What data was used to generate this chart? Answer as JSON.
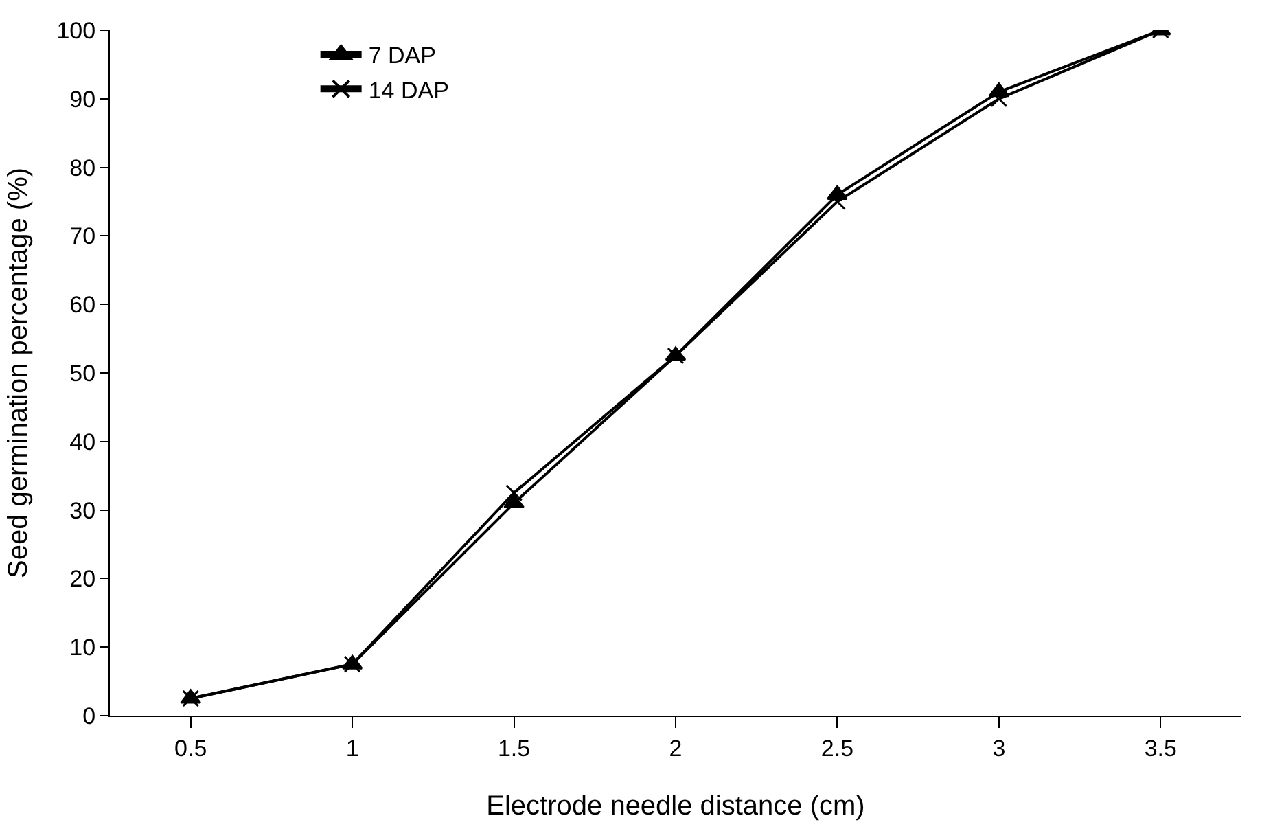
{
  "chart_data": {
    "type": "line",
    "xlabel": "Electrode needle distance (cm)",
    "ylabel": "Seed germination percentage (%)",
    "categories": [
      "0.5",
      "1",
      "1.5",
      "2",
      "2.5",
      "3",
      "3.5"
    ],
    "series": [
      {
        "name": "7 DAP",
        "color": "#000000",
        "marker": "triangle",
        "values": [
          2.5,
          7.5,
          31,
          52.5,
          76,
          91,
          100
        ]
      },
      {
        "name": "14 DAP",
        "color": "#000000",
        "marker": "cross",
        "values": [
          2.5,
          7.5,
          32.5,
          52.5,
          75,
          90,
          100
        ]
      }
    ],
    "ylim": [
      0,
      100
    ],
    "yticks": [
      0,
      10,
      20,
      30,
      40,
      50,
      60,
      70,
      80,
      90,
      100
    ],
    "legend": "top left",
    "line_style": "solid"
  }
}
